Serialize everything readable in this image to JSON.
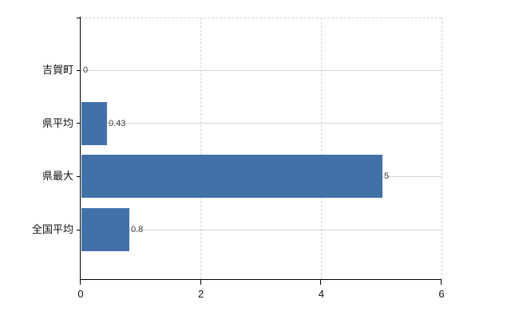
{
  "chart_data": {
    "type": "bar",
    "orientation": "horizontal",
    "title": "",
    "categories": [
      "吉賀町",
      "県平均",
      "県最大",
      "全国平均"
    ],
    "values": [
      0,
      0.43,
      5,
      0.8
    ],
    "value_labels": [
      "0",
      "0.43",
      "5",
      "0.8"
    ],
    "x_ticks": [
      0,
      2,
      4,
      6
    ],
    "x_tick_labels": [
      "0",
      "2",
      "4",
      "6"
    ],
    "xlim": [
      0,
      6
    ],
    "grid": true,
    "legend": false,
    "colors": {
      "bar": "#4271aa",
      "h_gridline": "#d3d9cd",
      "v_gridline": "#d9d3d9",
      "plot_border": "#d3d0d3",
      "axis": "#000000",
      "value_label": "#3a3a3a",
      "tick_label": "#111111"
    }
  }
}
